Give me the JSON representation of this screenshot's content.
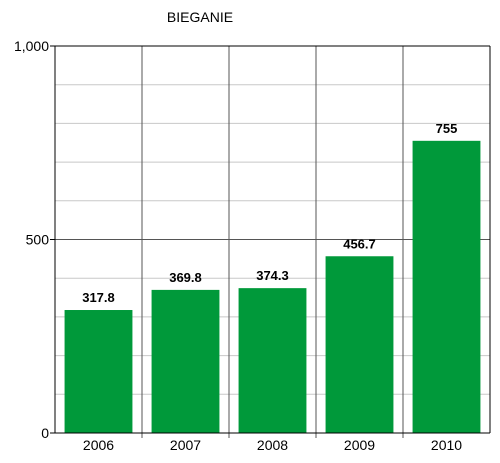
{
  "chart_data": {
    "type": "bar",
    "title": "BIEGANIE",
    "categories": [
      "2006",
      "2007",
      "2008",
      "2009",
      "2010"
    ],
    "values": [
      317.8,
      369.8,
      374.3,
      456.7,
      755
    ],
    "data_labels": [
      "317.8",
      "369.8",
      "374.3",
      "456.7",
      "755"
    ],
    "ylim": [
      0,
      1000
    ],
    "yticks": [
      0,
      500,
      1000
    ],
    "ytick_labels": [
      "0",
      "500",
      "1,000"
    ],
    "minor_grid_step": 100,
    "grid": true,
    "bar_color": "#00993a",
    "xlabel": "",
    "ylabel": ""
  }
}
